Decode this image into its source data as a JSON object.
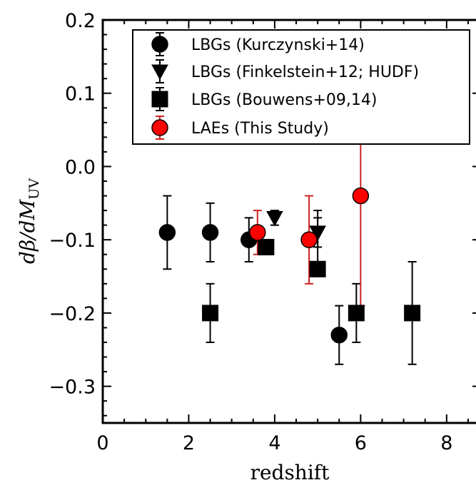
{
  "chart_data": {
    "type": "scatter",
    "xlabel": "redshift",
    "ylabel": "dβ/dM_UV",
    "ylabel_parts": {
      "main": "dβ/dM",
      "sub": "UV"
    },
    "xlim": [
      0,
      8.8
    ],
    "ylim": [
      -0.35,
      0.2
    ],
    "x_ticks": [
      0,
      2,
      4,
      6,
      8
    ],
    "y_ticks": [
      0.2,
      0.1,
      0.0,
      -0.1,
      -0.2,
      -0.3
    ],
    "x_tick_labels": [
      "0",
      "2",
      "4",
      "6",
      "8"
    ],
    "y_tick_labels": [
      "0.2",
      "0.1",
      "0.0",
      "−0.1",
      "−0.2",
      "−0.3"
    ],
    "grid": false,
    "legend_position": "top-right",
    "series": [
      {
        "name": "LBGs (Kurczynski+14)",
        "marker": "circle",
        "color": "#000000",
        "points": [
          {
            "x": 1.5,
            "y": -0.09,
            "ylo": -0.14,
            "yhi": -0.04
          },
          {
            "x": 2.5,
            "y": -0.09,
            "ylo": -0.13,
            "yhi": -0.05
          },
          {
            "x": 3.4,
            "y": -0.1,
            "ylo": -0.13,
            "yhi": -0.07
          },
          {
            "x": 5.5,
            "y": -0.23,
            "ylo": -0.27,
            "yhi": -0.19
          }
        ]
      },
      {
        "name": "LBGs (Finkelstein+12; HUDF)",
        "marker": "triangle-down",
        "color": "#000000",
        "points": [
          {
            "x": 4.0,
            "y": -0.07,
            "ylo": -0.08,
            "yhi": -0.06
          },
          {
            "x": 5.0,
            "y": -0.09,
            "ylo": -0.11,
            "yhi": -0.07
          }
        ]
      },
      {
        "name": "LBGs (Bouwens+09,14)",
        "marker": "square",
        "color": "#000000",
        "points": [
          {
            "x": 2.5,
            "y": -0.2,
            "ylo": -0.24,
            "yhi": -0.16
          },
          {
            "x": 3.8,
            "y": -0.11,
            "ylo": -0.12,
            "yhi": -0.1
          },
          {
            "x": 5.0,
            "y": -0.14,
            "ylo": -0.15,
            "yhi": -0.06
          },
          {
            "x": 5.9,
            "y": -0.2,
            "ylo": -0.24,
            "yhi": -0.16
          },
          {
            "x": 7.2,
            "y": -0.2,
            "ylo": -0.27,
            "yhi": -0.13
          }
        ]
      },
      {
        "name": "LAEs (This Study)",
        "marker": "circle",
        "color": "#ff0000",
        "edge_color": "#000000",
        "error_color": "#cc1f1f",
        "points": [
          {
            "x": 3.6,
            "y": -0.09,
            "ylo": -0.12,
            "yhi": -0.06
          },
          {
            "x": 4.8,
            "y": -0.1,
            "ylo": -0.16,
            "yhi": -0.04
          },
          {
            "x": 6.0,
            "y": -0.04,
            "ylo": -0.19,
            "yhi": 0.13
          }
        ]
      }
    ]
  }
}
